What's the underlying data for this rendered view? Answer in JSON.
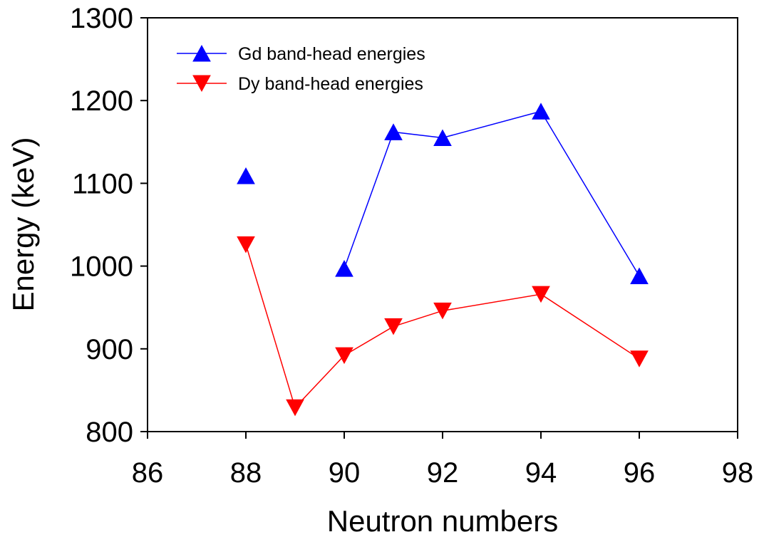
{
  "chart_data": {
    "type": "line",
    "xlabel": "Neutron numbers",
    "ylabel": "Energy (keV)",
    "xlim": [
      86,
      98
    ],
    "ylim": [
      800,
      1300
    ],
    "xticks": [
      "86",
      "88",
      "90",
      "92",
      "94",
      "96",
      "98"
    ],
    "yticks": [
      "800",
      "900",
      "1000",
      "1100",
      "1200",
      "1300"
    ],
    "grid": false,
    "legend_position": "top-left",
    "series": [
      {
        "name": "Gd band-head energies",
        "color": "#0000ff",
        "marker": "triangle-up",
        "points": [
          {
            "x": 88,
            "y": 1109
          },
          {
            "x": 90,
            "y": 997
          },
          {
            "x": 91,
            "y": 1162
          },
          {
            "x": 92,
            "y": 1155
          },
          {
            "x": 94,
            "y": 1187
          },
          {
            "x": 96,
            "y": 988
          }
        ],
        "line_segments": [
          [
            1,
            5
          ]
        ]
      },
      {
        "name": "Dy band-head energies",
        "color": "#ff0000",
        "marker": "triangle-down",
        "points": [
          {
            "x": 88,
            "y": 1026
          },
          {
            "x": 89,
            "y": 829
          },
          {
            "x": 90,
            "y": 892
          },
          {
            "x": 91,
            "y": 927
          },
          {
            "x": 92,
            "y": 946
          },
          {
            "x": 94,
            "y": 966
          },
          {
            "x": 96,
            "y": 888
          }
        ],
        "line_segments": [
          [
            0,
            6
          ]
        ]
      }
    ]
  }
}
